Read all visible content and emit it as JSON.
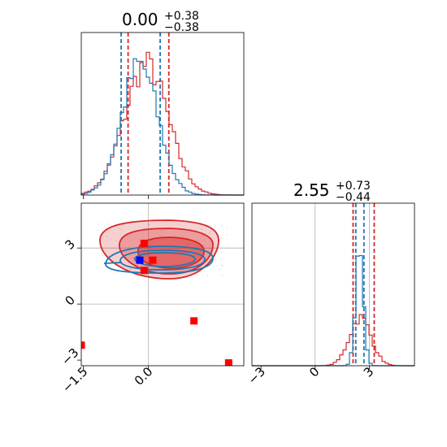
{
  "colors": {
    "posterior_a": "#d62728",
    "posterior_b": "#1f77b4",
    "marker_red": "#ff0000",
    "marker_blue": "#0000ff",
    "grid": "#b0b0b0"
  },
  "chart_data": [
    {
      "type": "corner",
      "panels": {
        "p1": {
          "type": "histogram",
          "parameter": 1,
          "title": {
            "value": "0.00",
            "plus": "+0.38",
            "minus": "−0.38"
          },
          "x_range": [
            -1.55,
            2.2
          ],
          "quantile_lines": {
            "#d62728": [
              -0.47,
              0.47
            ],
            "#1f77b4": [
              -0.63,
              0.27
            ]
          },
          "series": [
            {
              "color": "#d62728",
              "center": -0.05,
              "sd": 0.5,
              "peak": 1.0
            },
            {
              "color": "#1f77b4",
              "center": -0.2,
              "sd": 0.42,
              "peak": 1.0
            }
          ]
        },
        "p2": {
          "type": "histogram",
          "parameter": 2,
          "title": {
            "value": "2.55",
            "plus": "+0.73",
            "minus": "−0.44"
          },
          "x_range": [
            -3.5,
            5.5
          ],
          "x_ticks": [
            "−3",
            "0",
            "3"
          ],
          "x_tick_values": [
            -3,
            0,
            3
          ],
          "quantile_lines": {
            "#d62728": [
              2.1,
              3.27
            ],
            "#1f77b4": [
              2.25,
              2.7
            ]
          },
          "series": [
            {
              "color": "#d62728",
              "center": 2.5,
              "sd": 0.6,
              "peak": 0.37
            },
            {
              "color": "#1f77b4",
              "center": 2.45,
              "sd": 0.22,
              "peak": 0.9
            }
          ]
        },
        "p12": {
          "type": "contour",
          "x_range": [
            -1.55,
            2.2
          ],
          "y_range": [
            -3.3,
            5.4
          ],
          "x_ticks": [
            "−1.5",
            "0.0"
          ],
          "x_tick_values": [
            -1.5,
            0.0
          ],
          "y_ticks": [
            "−3",
            "0",
            "3"
          ],
          "y_tick_values": [
            -3,
            0,
            3
          ],
          "gridlines_x": [
            0.0
          ],
          "gridlines_y": [
            0,
            3
          ],
          "red_markers": [
            {
              "x": -0.1,
              "y": 3.25
            },
            {
              "x": 0.1,
              "y": 2.35
            },
            {
              "x": -0.1,
              "y": 1.8
            },
            {
              "x": 1.05,
              "y": -0.9
            },
            {
              "x": 1.85,
              "y": -3.15
            },
            {
              "x": -1.55,
              "y": -2.2
            }
          ],
          "blue_markers": [
            {
              "x": -0.2,
              "y": 2.35
            }
          ]
        }
      }
    }
  ]
}
